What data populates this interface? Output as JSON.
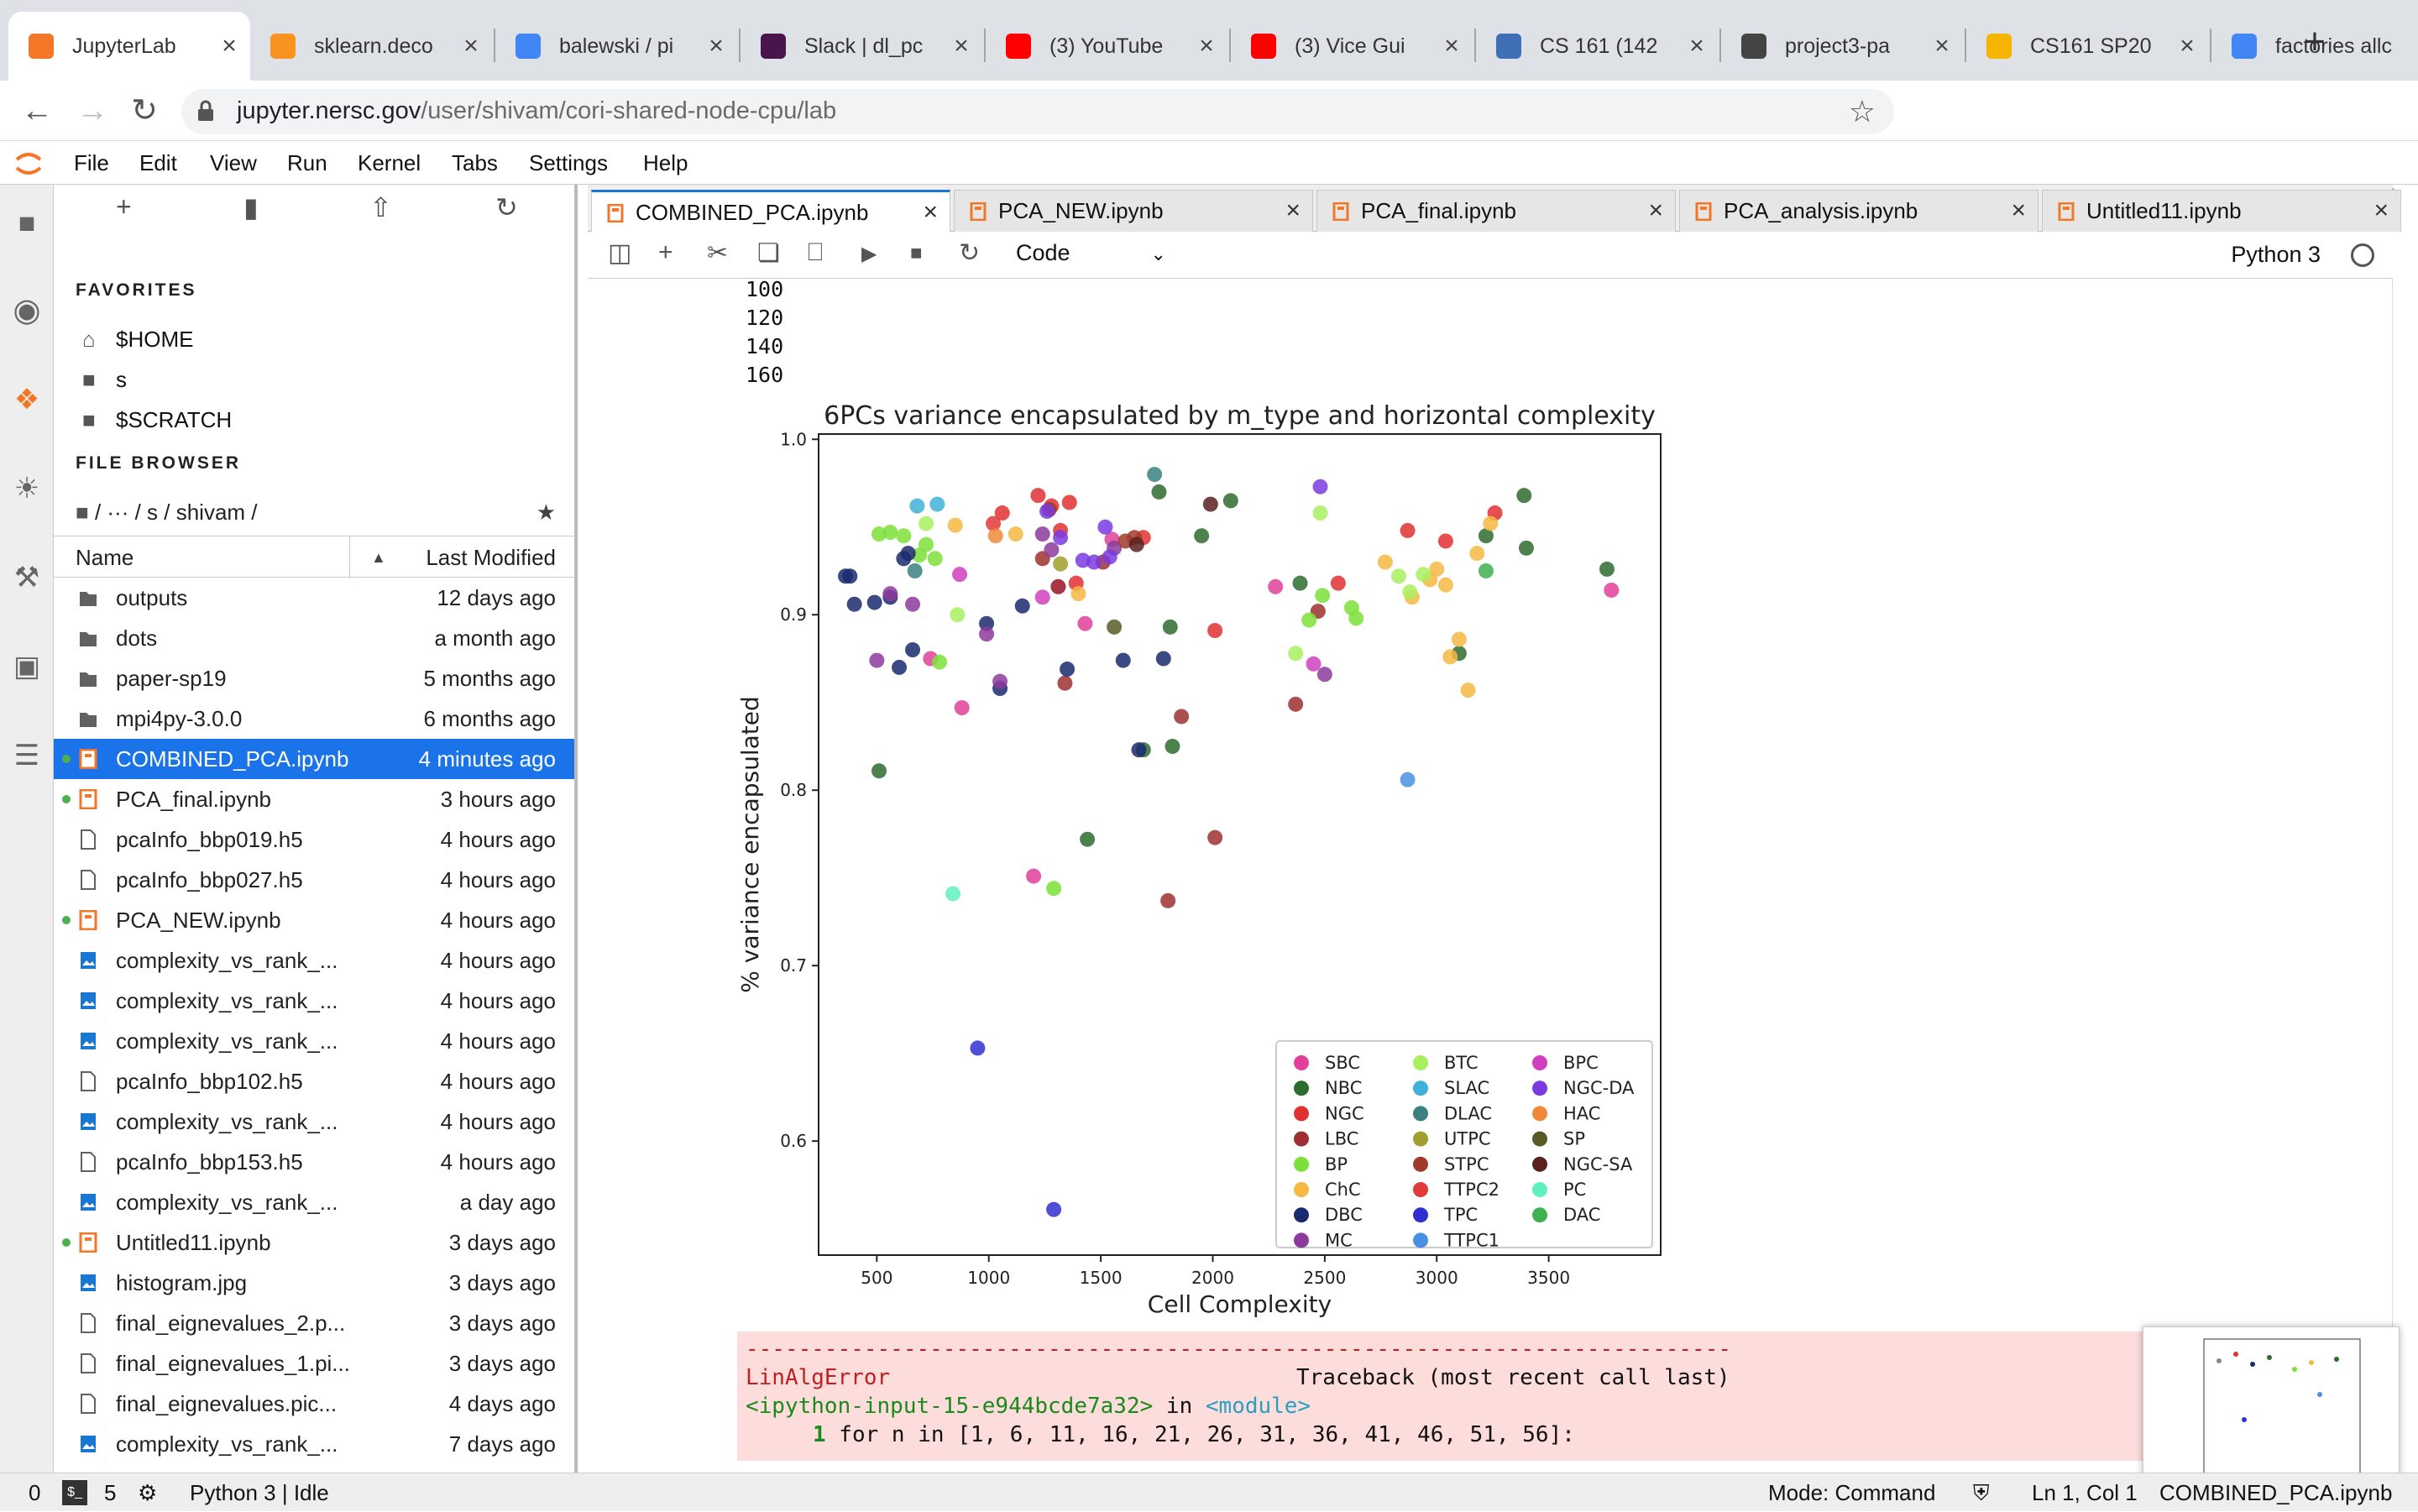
{
  "browser": {
    "tabs": [
      {
        "title": "JupyterLab",
        "color": "#f37726",
        "active": true
      },
      {
        "title": "sklearn.deco",
        "color": "#f7931e"
      },
      {
        "title": "balewski / pi",
        "color": "#4285f4"
      },
      {
        "title": "Slack | dl_pc",
        "color": "#4a154b"
      },
      {
        "title": "(3) YouTube",
        "color": "#ff0000"
      },
      {
        "title": "(3) Vice Gui",
        "color": "#ff0000"
      },
      {
        "title": "CS 161 (142",
        "color": "#3f6fb5"
      },
      {
        "title": "project3-pa",
        "color": "#444444"
      },
      {
        "title": "CS161 SP20",
        "color": "#f4b400"
      },
      {
        "title": "factories allc",
        "color": "#4285f4"
      }
    ],
    "url_host": "jupyter.nersc.gov",
    "url_path": "/user/shivam/cori-shared-node-cpu/lab"
  },
  "menu": [
    "File",
    "Edit",
    "View",
    "Run",
    "Kernel",
    "Tabs",
    "Settings",
    "Help"
  ],
  "sidebar": {
    "favorites_heading": "FAVORITES",
    "favorites": [
      "$HOME",
      "s",
      "$SCRATCH"
    ],
    "filebrowser_heading": "FILE BROWSER",
    "breadcrumb": "/ ··· / s / shivam /",
    "col_name": "Name",
    "col_modified": "Last Modified",
    "files": [
      {
        "name": "outputs",
        "modified": "12 days ago",
        "type": "folder"
      },
      {
        "name": "dots",
        "modified": "a month ago",
        "type": "folder"
      },
      {
        "name": "paper-sp19",
        "modified": "5 months ago",
        "type": "folder"
      },
      {
        "name": "mpi4py-3.0.0",
        "modified": "6 months ago",
        "type": "folder"
      },
      {
        "name": "COMBINED_PCA.ipynb",
        "modified": "4 minutes ago",
        "type": "notebook",
        "running": true,
        "selected": true
      },
      {
        "name": "PCA_final.ipynb",
        "modified": "3 hours ago",
        "type": "notebook",
        "running": true
      },
      {
        "name": "pcaInfo_bbp019.h5",
        "modified": "4 hours ago",
        "type": "file"
      },
      {
        "name": "pcaInfo_bbp027.h5",
        "modified": "4 hours ago",
        "type": "file"
      },
      {
        "name": "PCA_NEW.ipynb",
        "modified": "4 hours ago",
        "type": "notebook",
        "running": true
      },
      {
        "name": "complexity_vs_rank_...",
        "modified": "4 hours ago",
        "type": "image"
      },
      {
        "name": "complexity_vs_rank_...",
        "modified": "4 hours ago",
        "type": "image"
      },
      {
        "name": "complexity_vs_rank_...",
        "modified": "4 hours ago",
        "type": "image"
      },
      {
        "name": "pcaInfo_bbp102.h5",
        "modified": "4 hours ago",
        "type": "file"
      },
      {
        "name": "complexity_vs_rank_...",
        "modified": "4 hours ago",
        "type": "image"
      },
      {
        "name": "pcaInfo_bbp153.h5",
        "modified": "4 hours ago",
        "type": "file"
      },
      {
        "name": "complexity_vs_rank_...",
        "modified": "a day ago",
        "type": "image"
      },
      {
        "name": "Untitled11.ipynb",
        "modified": "3 days ago",
        "type": "notebook",
        "running": true
      },
      {
        "name": "histogram.jpg",
        "modified": "3 days ago",
        "type": "image"
      },
      {
        "name": "final_eignevalues_2.p...",
        "modified": "3 days ago",
        "type": "file"
      },
      {
        "name": "final_eignevalues_1.pi...",
        "modified": "3 days ago",
        "type": "file"
      },
      {
        "name": "final_eignevalues.pic...",
        "modified": "4 days ago",
        "type": "file"
      },
      {
        "name": "complexity_vs_rank_...",
        "modified": "7 days ago",
        "type": "image"
      }
    ]
  },
  "notebook_tabs": [
    "COMBINED_PCA.ipynb",
    "PCA_NEW.ipynb",
    "PCA_final.ipynb",
    "PCA_analysis.ipynb",
    "Untitled11.ipynb"
  ],
  "toolbar": {
    "cell_type": "Code",
    "kernel": "Python 3"
  },
  "output": {
    "prev_lines": [
      "100",
      "120",
      "140",
      "160"
    ],
    "error_sep": "---------------------------------------------------------------------------",
    "error_name": "LinAlgError",
    "error_traceback": "Traceback (most recent call last)",
    "error_input": "<ipython-input-15-e944bcde7a32>",
    "error_in": " in ",
    "error_module": "<module>",
    "error_code_lineno": "1",
    "error_code": " for n in [1, 6, 11, 16, 21, 26, 31, 36, 41, 46, 51, 56]:"
  },
  "chart_data": {
    "type": "scatter",
    "title": "6PCs variance encapsulated by m_type and horizontal complexity",
    "xlabel": "Cell Complexity",
    "ylabel": "% variance encapsulated",
    "xlim": [
      240,
      4000
    ],
    "ylim": [
      0.535,
      1.003
    ],
    "xticks": [
      500,
      1000,
      1500,
      2000,
      2500,
      3000,
      3500
    ],
    "yticks": [
      0.6,
      0.7,
      0.8,
      0.9,
      1.0
    ],
    "legend_position": "lower right",
    "series": [
      {
        "name": "SBC",
        "color": "#e0409a",
        "points": [
          [
            740,
            0.875
          ],
          [
            880,
            0.847
          ],
          [
            1200,
            0.751
          ],
          [
            1310,
            0.916
          ],
          [
            1430,
            0.895
          ],
          [
            1550,
            0.943
          ],
          [
            2280,
            0.916
          ],
          [
            3780,
            0.914
          ]
        ]
      },
      {
        "name": "NBC",
        "color": "#2e6b2e",
        "points": [
          [
            510,
            0.811
          ],
          [
            1440,
            0.772
          ],
          [
            1690,
            0.823
          ],
          [
            1760,
            0.97
          ],
          [
            1810,
            0.893
          ],
          [
            1820,
            0.825
          ],
          [
            1950,
            0.945
          ],
          [
            2080,
            0.965
          ],
          [
            2390,
            0.918
          ],
          [
            3100,
            0.878
          ],
          [
            3220,
            0.945
          ],
          [
            3390,
            0.968
          ],
          [
            3400,
            0.938
          ],
          [
            3760,
            0.926
          ]
        ]
      },
      {
        "name": "NGC",
        "color": "#e03030",
        "points": [
          [
            1060,
            0.958
          ],
          [
            1220,
            0.968
          ],
          [
            1280,
            0.962
          ],
          [
            1320,
            0.948
          ],
          [
            1360,
            0.964
          ],
          [
            1390,
            0.918
          ],
          [
            1690,
            0.944
          ],
          [
            2010,
            0.891
          ],
          [
            2560,
            0.918
          ],
          [
            2870,
            0.948
          ],
          [
            3040,
            0.942
          ],
          [
            3260,
            0.958
          ]
        ]
      },
      {
        "name": "LBC",
        "color": "#9c3030",
        "points": [
          [
            1240,
            0.932
          ],
          [
            1310,
            0.916
          ],
          [
            1340,
            0.861
          ],
          [
            1510,
            0.93
          ],
          [
            1800,
            0.737
          ],
          [
            1860,
            0.842
          ],
          [
            2010,
            0.773
          ],
          [
            2370,
            0.849
          ],
          [
            2470,
            0.902
          ]
        ]
      },
      {
        "name": "BP",
        "color": "#7de03a",
        "points": [
          [
            510,
            0.946
          ],
          [
            560,
            0.947
          ],
          [
            620,
            0.945
          ],
          [
            690,
            0.934
          ],
          [
            720,
            0.94
          ],
          [
            760,
            0.932
          ],
          [
            780,
            0.873
          ],
          [
            1290,
            0.744
          ],
          [
            2430,
            0.897
          ],
          [
            2490,
            0.911
          ],
          [
            2620,
            0.904
          ],
          [
            2640,
            0.898
          ]
        ]
      },
      {
        "name": "ChC",
        "color": "#f5b942",
        "points": [
          [
            850,
            0.951
          ],
          [
            1120,
            0.946
          ],
          [
            1400,
            0.912
          ],
          [
            2770,
            0.93
          ],
          [
            2890,
            0.91
          ],
          [
            2970,
            0.92
          ],
          [
            3000,
            0.926
          ],
          [
            3040,
            0.917
          ],
          [
            3060,
            0.876
          ],
          [
            3100,
            0.886
          ],
          [
            3140,
            0.857
          ],
          [
            3180,
            0.935
          ],
          [
            3240,
            0.952
          ]
        ]
      },
      {
        "name": "DBC",
        "color": "#1a2a6e",
        "points": [
          [
            360,
            0.922
          ],
          [
            380,
            0.922
          ],
          [
            400,
            0.906
          ],
          [
            490,
            0.907
          ],
          [
            560,
            0.91
          ],
          [
            600,
            0.87
          ],
          [
            620,
            0.932
          ],
          [
            640,
            0.935
          ],
          [
            660,
            0.88
          ],
          [
            990,
            0.895
          ],
          [
            1050,
            0.858
          ],
          [
            1150,
            0.905
          ],
          [
            1350,
            0.869
          ],
          [
            1600,
            0.874
          ],
          [
            1670,
            0.823
          ],
          [
            1780,
            0.875
          ]
        ]
      },
      {
        "name": "MC",
        "color": "#8c3a9c",
        "points": [
          [
            500,
            0.874
          ],
          [
            560,
            0.912
          ],
          [
            660,
            0.906
          ],
          [
            990,
            0.889
          ],
          [
            1050,
            0.862
          ],
          [
            1240,
            0.946
          ],
          [
            1280,
            0.937
          ],
          [
            1560,
            0.938
          ],
          [
            2500,
            0.866
          ]
        ]
      },
      {
        "name": "BTC",
        "color": "#a8f060",
        "points": [
          [
            720,
            0.952
          ],
          [
            860,
            0.9
          ],
          [
            2370,
            0.878
          ],
          [
            2480,
            0.958
          ],
          [
            2830,
            0.922
          ],
          [
            2880,
            0.913
          ],
          [
            2940,
            0.923
          ]
        ]
      },
      {
        "name": "SLAC",
        "color": "#3fb0d8",
        "points": [
          [
            680,
            0.962
          ],
          [
            770,
            0.963
          ]
        ]
      },
      {
        "name": "DLAC",
        "color": "#3a8080",
        "points": [
          [
            670,
            0.925
          ],
          [
            1740,
            0.98
          ]
        ]
      },
      {
        "name": "UTPC",
        "color": "#a0a030",
        "points": [
          [
            1320,
            0.929
          ]
        ]
      },
      {
        "name": "STPC",
        "color": "#a03a2a",
        "points": [
          [
            1270,
            0.96
          ],
          [
            1610,
            0.942
          ],
          [
            1650,
            0.944
          ]
        ]
      },
      {
        "name": "TTPC2",
        "color": "#e03a3a",
        "points": [
          [
            1020,
            0.952
          ]
        ]
      },
      {
        "name": "TPC",
        "color": "#3030d0",
        "points": [
          [
            950,
            0.653
          ],
          [
            1290,
            0.561
          ]
        ]
      },
      {
        "name": "TTPC1",
        "color": "#4a90e0",
        "points": [
          [
            2870,
            0.806
          ]
        ]
      },
      {
        "name": "BPC",
        "color": "#d040c0",
        "points": [
          [
            870,
            0.923
          ],
          [
            1240,
            0.91
          ],
          [
            2450,
            0.872
          ]
        ]
      },
      {
        "name": "NGC-DA",
        "color": "#7a3ae0",
        "points": [
          [
            1260,
            0.959
          ],
          [
            1320,
            0.944
          ],
          [
            1420,
            0.931
          ],
          [
            1470,
            0.93
          ],
          [
            1520,
            0.95
          ],
          [
            1540,
            0.933
          ],
          [
            2480,
            0.973
          ]
        ]
      },
      {
        "name": "HAC",
        "color": "#f08a3a",
        "points": [
          [
            1030,
            0.945
          ]
        ]
      },
      {
        "name": "SP",
        "color": "#5a5a28",
        "points": [
          [
            1560,
            0.893
          ]
        ]
      },
      {
        "name": "NGC-SA",
        "color": "#5a2020",
        "points": [
          [
            1660,
            0.94
          ],
          [
            1990,
            0.963
          ]
        ]
      },
      {
        "name": "PC",
        "color": "#60f0c0",
        "points": [
          [
            840,
            0.741
          ]
        ]
      },
      {
        "name": "DAC",
        "color": "#40b050",
        "points": [
          [
            3220,
            0.925
          ]
        ]
      }
    ]
  },
  "status": {
    "left_num1": "0",
    "left_num2": "5",
    "kernel_status": "Python 3 | Idle",
    "mode": "Mode: Command",
    "cursor": "Ln 1, Col 1",
    "file": "COMBINED_PCA.ipynb"
  }
}
